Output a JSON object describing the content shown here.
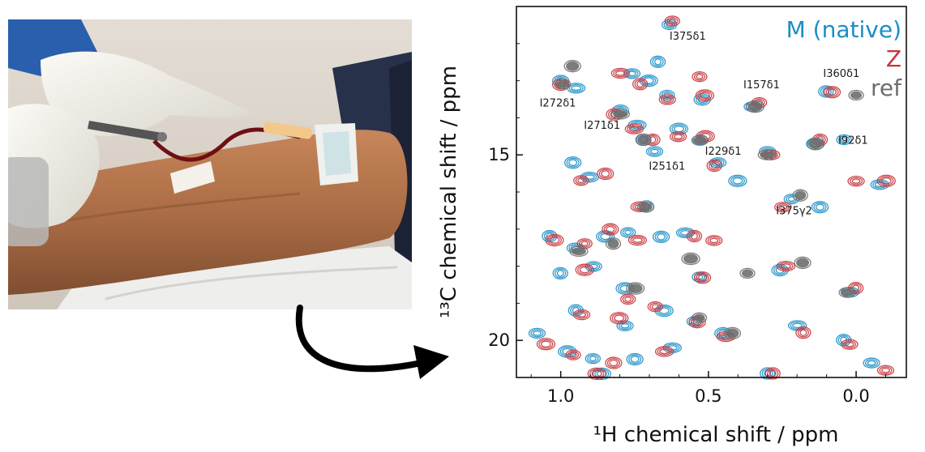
{
  "colors": {
    "native": "#1a8ec6",
    "Z": "#c8343a",
    "ref": "#6e6e6e",
    "arrow": "#000000"
  },
  "photo": {
    "icon": "blood-draw-photo"
  },
  "chart_data": {
    "type": "scatter",
    "title": "",
    "xlabel": "¹H chemical shift / ppm",
    "ylabel": "¹³C chemical shift / ppm",
    "x_reversed": true,
    "xlim": [
      1.15,
      -0.17
    ],
    "ylim": [
      11.0,
      21.0
    ],
    "x_ticks": [
      {
        "value": 1.0,
        "label": "1.0"
      },
      {
        "value": 0.5,
        "label": "0.5"
      },
      {
        "value": 0.0,
        "label": "0.0"
      }
    ],
    "y_ticks": [
      {
        "value": 15,
        "label": "15"
      },
      {
        "value": 20,
        "label": "20"
      }
    ],
    "legend": [
      {
        "name": "M (native)",
        "key": "native"
      },
      {
        "name": "Z",
        "key": "Z"
      },
      {
        "name": "ref",
        "key": "ref"
      }
    ],
    "legend_position": "top-right",
    "annotations": [
      {
        "text": "I375δ1",
        "x": 0.57,
        "y": 11.9
      },
      {
        "text": "I272δ1",
        "x": 1.01,
        "y": 13.7
      },
      {
        "text": "I157δ1",
        "x": 0.32,
        "y": 13.2
      },
      {
        "text": "I360δ1",
        "x": 0.05,
        "y": 12.9
      },
      {
        "text": "I271δ1",
        "x": 0.86,
        "y": 14.3
      },
      {
        "text": "I92δ1",
        "x": 0.01,
        "y": 14.7
      },
      {
        "text": "I251δ1",
        "x": 0.64,
        "y": 15.4
      },
      {
        "text": "I229δ1",
        "x": 0.45,
        "y": 15.0
      },
      {
        "text": "I375γ2",
        "x": 0.21,
        "y": 16.6
      }
    ],
    "series": [
      {
        "name": "M (native)",
        "key": "native",
        "points": [
          [
            0.63,
            11.5
          ],
          [
            1.0,
            13.0
          ],
          [
            0.95,
            13.2
          ],
          [
            0.67,
            12.5
          ],
          [
            0.76,
            12.8
          ],
          [
            0.7,
            13.0
          ],
          [
            0.64,
            13.4
          ],
          [
            0.8,
            13.8
          ],
          [
            0.74,
            14.2
          ],
          [
            0.72,
            14.6
          ],
          [
            0.68,
            14.9
          ],
          [
            0.6,
            14.3
          ],
          [
            0.53,
            14.6
          ],
          [
            0.52,
            13.5
          ],
          [
            0.35,
            13.7
          ],
          [
            0.1,
            13.3
          ],
          [
            0.3,
            14.9
          ],
          [
            0.14,
            14.7
          ],
          [
            0.04,
            14.6
          ],
          [
            0.96,
            15.2
          ],
          [
            0.9,
            15.6
          ],
          [
            0.71,
            16.4
          ],
          [
            0.47,
            15.2
          ],
          [
            0.4,
            15.7
          ],
          [
            0.22,
            16.2
          ],
          [
            0.12,
            16.4
          ],
          [
            -0.08,
            15.8
          ],
          [
            1.04,
            17.2
          ],
          [
            0.95,
            17.5
          ],
          [
            0.85,
            17.2
          ],
          [
            0.77,
            17.1
          ],
          [
            0.66,
            17.2
          ],
          [
            0.58,
            17.1
          ],
          [
            1.0,
            18.2
          ],
          [
            0.89,
            18.0
          ],
          [
            0.78,
            18.6
          ],
          [
            0.53,
            18.3
          ],
          [
            0.26,
            18.1
          ],
          [
            0.02,
            18.7
          ],
          [
            0.95,
            19.2
          ],
          [
            0.78,
            19.6
          ],
          [
            0.65,
            19.2
          ],
          [
            0.55,
            19.5
          ],
          [
            0.45,
            19.8
          ],
          [
            0.2,
            19.6
          ],
          [
            0.04,
            20.0
          ],
          [
            1.08,
            19.8
          ],
          [
            0.98,
            20.3
          ],
          [
            0.89,
            20.5
          ],
          [
            0.75,
            20.5
          ],
          [
            0.62,
            20.2
          ],
          [
            0.3,
            20.9
          ],
          [
            -0.05,
            20.6
          ],
          [
            0.86,
            20.9
          ]
        ]
      },
      {
        "name": "Z",
        "key": "Z",
        "points": [
          [
            0.62,
            11.4
          ],
          [
            1.0,
            13.1
          ],
          [
            0.8,
            12.8
          ],
          [
            0.73,
            13.1
          ],
          [
            0.64,
            13.5
          ],
          [
            0.51,
            13.4
          ],
          [
            0.53,
            12.9
          ],
          [
            0.82,
            13.9
          ],
          [
            0.75,
            14.3
          ],
          [
            0.69,
            14.6
          ],
          [
            0.6,
            14.5
          ],
          [
            0.51,
            14.5
          ],
          [
            0.33,
            13.6
          ],
          [
            0.08,
            13.3
          ],
          [
            0.29,
            15.0
          ],
          [
            0.12,
            14.6
          ],
          [
            0.0,
            15.7
          ],
          [
            -0.1,
            15.7
          ],
          [
            0.93,
            15.7
          ],
          [
            0.85,
            15.5
          ],
          [
            0.73,
            16.4
          ],
          [
            0.48,
            15.3
          ],
          [
            0.25,
            16.4
          ],
          [
            1.02,
            17.3
          ],
          [
            0.92,
            17.4
          ],
          [
            0.83,
            17.0
          ],
          [
            0.74,
            17.3
          ],
          [
            0.55,
            17.2
          ],
          [
            0.48,
            17.3
          ],
          [
            0.92,
            18.1
          ],
          [
            0.77,
            18.9
          ],
          [
            0.52,
            18.3
          ],
          [
            0.24,
            18.0
          ],
          [
            0.0,
            18.6
          ],
          [
            0.93,
            19.3
          ],
          [
            0.8,
            19.4
          ],
          [
            0.68,
            19.1
          ],
          [
            0.54,
            19.5
          ],
          [
            0.44,
            19.9
          ],
          [
            0.18,
            19.8
          ],
          [
            0.02,
            20.1
          ],
          [
            1.05,
            20.1
          ],
          [
            0.96,
            20.4
          ],
          [
            0.82,
            20.6
          ],
          [
            0.65,
            20.3
          ],
          [
            0.28,
            20.9
          ],
          [
            -0.1,
            20.8
          ],
          [
            0.88,
            20.9
          ]
        ]
      },
      {
        "name": "ref",
        "key": "ref",
        "points": [
          [
            0.99,
            13.1
          ],
          [
            0.96,
            12.6
          ],
          [
            0.8,
            13.9
          ],
          [
            0.72,
            14.6
          ],
          [
            0.53,
            14.6
          ],
          [
            0.34,
            13.7
          ],
          [
            0.0,
            13.4
          ],
          [
            0.14,
            14.7
          ],
          [
            0.3,
            15.0
          ],
          [
            0.19,
            16.1
          ],
          [
            0.71,
            16.4
          ],
          [
            0.56,
            17.8
          ],
          [
            0.37,
            18.2
          ],
          [
            0.18,
            17.9
          ],
          [
            0.94,
            17.6
          ],
          [
            0.82,
            17.4
          ],
          [
            0.03,
            18.7
          ],
          [
            0.75,
            18.6
          ],
          [
            0.53,
            19.4
          ],
          [
            0.42,
            19.8
          ]
        ]
      }
    ]
  }
}
